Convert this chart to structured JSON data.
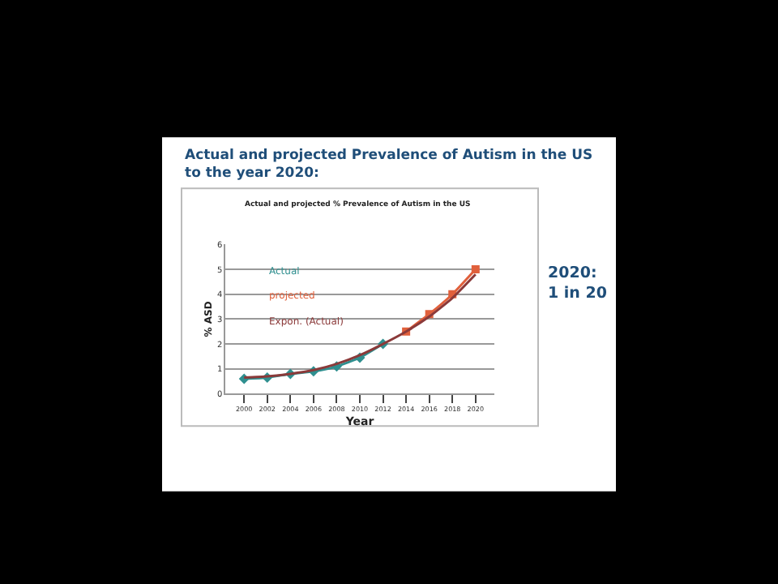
{
  "chart_data": {
    "type": "line",
    "title": "Actual and projected Prevalence of Autism in the US to the year 2020:",
    "subtitle": "Actual and projected % Prevalence of Autism in the US",
    "xlabel": "Year",
    "ylabel": "% ASD",
    "categories": [
      "2000",
      "2002",
      "2004",
      "2006",
      "2008",
      "2010",
      "2012",
      "2014",
      "2016",
      "2018",
      "2020"
    ],
    "series": [
      {
        "name": "Actual",
        "color": "#2f8f8f",
        "marker": "diamond",
        "values": [
          0.6,
          0.65,
          0.8,
          0.9,
          1.1,
          1.45,
          2.0,
          null,
          null,
          null,
          null
        ]
      },
      {
        "name": "projected",
        "color": "#e0603c",
        "marker": "square",
        "values": [
          null,
          null,
          null,
          null,
          null,
          null,
          null,
          2.5,
          3.2,
          4.0,
          5.0
        ]
      },
      {
        "name": "Expon. (Actual)",
        "color": "#8b3a3a",
        "marker": "none",
        "values": [
          0.65,
          0.7,
          0.8,
          0.95,
          1.2,
          1.55,
          2.0,
          2.5,
          3.1,
          3.85,
          4.8
        ]
      }
    ],
    "ylim": [
      0,
      6
    ],
    "yticks": [
      0,
      1,
      2,
      3,
      4,
      5,
      6
    ],
    "grid": "y",
    "annotations": [
      "2020:\n1 in 20"
    ]
  }
}
